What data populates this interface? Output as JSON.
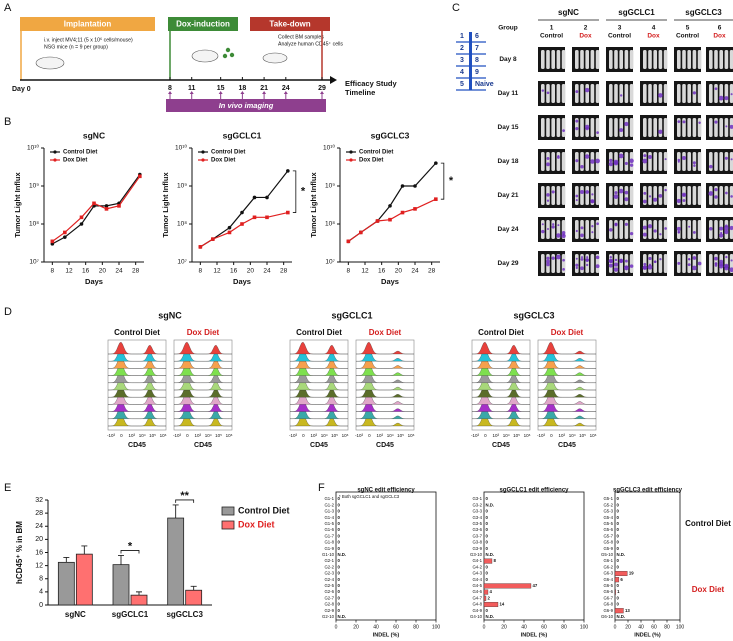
{
  "figure": {
    "panel_labels": [
      "A",
      "B",
      "C",
      "D",
      "E",
      "F"
    ],
    "timeline": {
      "phases": [
        "Implantation",
        "Dox-induction",
        "Take-down"
      ],
      "implant_notes": [
        "i.v. inject MV4;11 (5 x 10⁶ cells/mouse)",
        "NSG mice (n = 9 per group)"
      ],
      "takedown_notes": [
        "Collect BM samples",
        "Analyze human CD45⁺ cells"
      ],
      "start": "Day 0",
      "days": [
        8,
        11,
        15,
        18,
        21,
        24,
        29
      ],
      "imaging": "In vivo imaging",
      "caption": [
        "Efficacy Study",
        "Timeline"
      ]
    },
    "imaging_grid": {
      "group_label": "Group",
      "headers": [
        "sgNC",
        "sgGCLC1",
        "sgGCLC3"
      ],
      "groups": [
        1,
        2,
        3,
        4,
        5,
        6
      ],
      "diets": [
        "Control",
        "Dox",
        "Control",
        "Dox",
        "Control",
        "Dox"
      ],
      "days": [
        "Day 8",
        "Day 11",
        "Day 15",
        "Day 18",
        "Day 21",
        "Day 24",
        "Day 29"
      ],
      "legend": [
        [
          "1",
          "6"
        ],
        [
          "2",
          "7"
        ],
        [
          "3",
          "8"
        ],
        [
          "4",
          "9"
        ],
        [
          "5",
          "Naive"
        ]
      ]
    },
    "flow": {
      "headers": [
        "sgNC",
        "sgGCLC1",
        "sgGCLC3"
      ],
      "diets": [
        "Control Diet",
        "Dox Diet"
      ],
      "ticks": [
        "-10³",
        "0",
        "10³",
        "10⁴",
        "10⁵",
        "10⁶"
      ],
      "xlabel": "CD45"
    },
    "edit_groups": [
      "Control Diet",
      "Dox Diet"
    ]
  },
  "chart_data": [
    {
      "type": "line",
      "title": "sgNC",
      "xlabel": "Days",
      "ylabel": "Tumor Light Influx",
      "log": true,
      "x": [
        8,
        11,
        15,
        18,
        21,
        24,
        29
      ],
      "xlim": [
        6,
        30
      ],
      "xticks": [
        8,
        12,
        16,
        20,
        24,
        28
      ],
      "ylim": [
        10000000,
        10000000000
      ],
      "yticks": [
        {
          "value": 10000000,
          "label": "10⁷"
        },
        {
          "value": 100000000,
          "label": "10⁸"
        },
        {
          "value": 1000000000,
          "label": "10⁹"
        },
        {
          "value": 10000000000,
          "label": "10¹⁰"
        }
      ],
      "series": [
        {
          "name": "Control Diet",
          "color": "#111111",
          "values": [
            30000000,
            45000000,
            100000000,
            300000000,
            300000000,
            350000000,
            2000000000
          ]
        },
        {
          "name": "Dox Diet",
          "color": "#e02020",
          "values": [
            35000000,
            60000000,
            150000000,
            350000000,
            250000000,
            300000000,
            1800000000
          ]
        }
      ]
    },
    {
      "type": "line",
      "title": "sgGCLC1",
      "xlabel": "Days",
      "ylabel": "Tumor Light Influx",
      "log": true,
      "annotation": "*",
      "x": [
        8,
        11,
        15,
        18,
        21,
        24,
        29
      ],
      "xlim": [
        6,
        30
      ],
      "xticks": [
        8,
        12,
        16,
        20,
        24,
        28
      ],
      "ylim": [
        10000000,
        10000000000
      ],
      "yticks": [
        {
          "value": 10000000,
          "label": "10⁷"
        },
        {
          "value": 100000000,
          "label": "10⁸"
        },
        {
          "value": 1000000000,
          "label": "10⁹"
        },
        {
          "value": 10000000000,
          "label": "10¹⁰"
        }
      ],
      "series": [
        {
          "name": "Control Diet",
          "color": "#111111",
          "values": [
            25000000,
            40000000,
            80000000,
            200000000,
            500000000,
            500000000,
            2500000000
          ]
        },
        {
          "name": "Dox Diet",
          "color": "#e02020",
          "values": [
            25000000,
            40000000,
            60000000,
            100000000,
            150000000,
            150000000,
            200000000
          ]
        }
      ]
    },
    {
      "type": "line",
      "title": "sgGCLC3",
      "xlabel": "Days",
      "ylabel": "Tumor Light Influx",
      "log": true,
      "annotation": "*",
      "x": [
        8,
        11,
        15,
        18,
        21,
        24,
        29
      ],
      "xlim": [
        6,
        30
      ],
      "xticks": [
        8,
        12,
        16,
        20,
        24,
        28
      ],
      "ylim": [
        10000000,
        10000000000
      ],
      "yticks": [
        {
          "value": 10000000,
          "label": "10⁷"
        },
        {
          "value": 100000000,
          "label": "10⁸"
        },
        {
          "value": 1000000000,
          "label": "10⁹"
        },
        {
          "value": 10000000000,
          "label": "10¹⁰"
        }
      ],
      "series": [
        {
          "name": "Control Diet",
          "color": "#111111",
          "values": [
            35000000,
            60000000,
            120000000,
            300000000,
            1000000000,
            1000000000,
            4000000000
          ]
        },
        {
          "name": "Dox Diet",
          "color": "#e02020",
          "values": [
            35000000,
            60000000,
            120000000,
            130000000,
            200000000,
            250000000,
            450000000
          ]
        }
      ]
    },
    {
      "type": "bar",
      "ylabel": "hCD45⁺ % in BM",
      "categories": [
        "sgNC",
        "sgGCLC1",
        "sgGCLC3"
      ],
      "ylim": [
        0,
        32
      ],
      "yticks": [
        0,
        4,
        8,
        12,
        16,
        20,
        24,
        28,
        32
      ],
      "annotations": [
        "*",
        "**"
      ],
      "series": [
        {
          "name": "Control Diet",
          "color": "#999999",
          "values": [
            13,
            12.3,
            26.5
          ],
          "errors": [
            1.5,
            2.8,
            4
          ]
        },
        {
          "name": "Dox Diet",
          "color": "#ff7070",
          "values": [
            15.5,
            3,
            4.5
          ],
          "errors": [
            2.5,
            1,
            1.2
          ]
        }
      ]
    },
    {
      "type": "hbar",
      "title": "sgNC edit efficiency",
      "xlabel": "INDEL (%)",
      "note": "* Both sgGCLC1 and sgGCLC3",
      "xlim": [
        0,
        100
      ],
      "xticks": [
        0,
        20,
        40,
        60,
        80,
        100
      ],
      "color": "#f25c5c",
      "categories": [
        "G1-1",
        "G1-2",
        "G1-3",
        "G1-4",
        "G1-5",
        "G1-6",
        "G1-7",
        "G1-8",
        "G1-9",
        "G1-10",
        "G2-1",
        "G2-2",
        "G2-3",
        "G2-4",
        "G2-5",
        "G2-6",
        "G2-7",
        "G2-8",
        "G2-9",
        "G2-10"
      ],
      "values": [
        0,
        0,
        0,
        0,
        0,
        0,
        0,
        0,
        0,
        null,
        0,
        0,
        0,
        0,
        0,
        0,
        0,
        0,
        0,
        null
      ],
      "value_labels": [
        "0",
        "0",
        "0",
        "0",
        "0",
        "0",
        "0",
        "0",
        "0",
        "N.D.",
        "0",
        "0",
        "0",
        "0",
        "0",
        "0",
        "0",
        "0",
        "0",
        "N.D."
      ]
    },
    {
      "type": "hbar",
      "title": "sgGCLC1 edit efficiency",
      "xlabel": "INDEL (%)",
      "xlim": [
        0,
        100
      ],
      "xticks": [
        0,
        20,
        40,
        60,
        80,
        100
      ],
      "color": "#f25c5c",
      "categories": [
        "G3-1",
        "G3-2",
        "G3-3",
        "G3-4",
        "G3-5",
        "G3-6",
        "G3-7",
        "G3-8",
        "G3-9",
        "G3-10",
        "G4-1",
        "G4-2",
        "G4-3",
        "G4-4",
        "G4-5",
        "G4-6",
        "G4-7",
        "G4-8",
        "G4-9",
        "G4-10"
      ],
      "values": [
        0,
        null,
        0,
        0,
        0,
        0,
        0,
        0,
        0,
        null,
        8,
        0,
        0,
        0,
        47,
        4,
        2,
        14,
        0,
        null
      ],
      "value_labels": [
        "0",
        "N.D.",
        "0",
        "0",
        "0",
        "0",
        "0",
        "0",
        "0",
        "N.D.",
        "8",
        "0",
        "0",
        "0",
        "47",
        "4",
        "2",
        "14",
        "0",
        "N.D."
      ]
    },
    {
      "type": "hbar",
      "title": "sgGCLC3 edit efficiency",
      "xlabel": "INDEL (%)",
      "xlim": [
        0,
        100
      ],
      "xticks": [
        0,
        20,
        40,
        60,
        80,
        100
      ],
      "color": "#f25c5c",
      "categories": [
        "G5-1",
        "G5-2",
        "G5-3",
        "G5-4",
        "G5-5",
        "G5-6",
        "G5-7",
        "G5-8",
        "G5-9",
        "G5-10",
        "G6-1",
        "G6-2",
        "G6-3",
        "G6-4",
        "G6-5",
        "G6-6",
        "G6-7",
        "G6-8",
        "G6-9",
        "G6-10"
      ],
      "values": [
        0,
        0,
        0,
        0,
        0,
        0,
        0,
        0,
        0,
        null,
        0,
        0,
        19,
        6,
        0,
        1,
        0,
        0,
        13,
        null
      ],
      "value_labels": [
        "0",
        "0",
        "0",
        "0",
        "0",
        "0",
        "0",
        "0",
        "0",
        "N.D.",
        "0",
        "0",
        "19",
        "6",
        "0",
        "1",
        "0",
        "0",
        "13",
        "N.D."
      ]
    }
  ]
}
